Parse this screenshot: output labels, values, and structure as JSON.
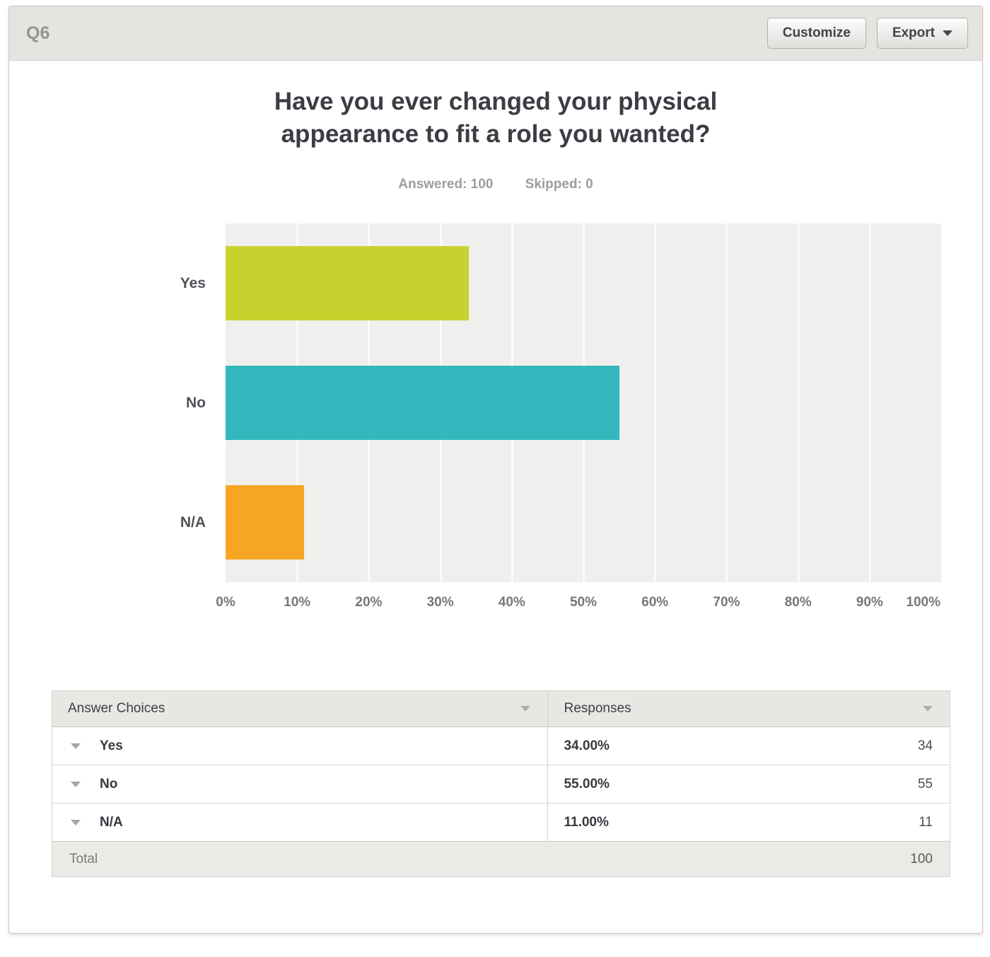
{
  "header": {
    "question_label": "Q6",
    "customize_label": "Customize",
    "export_label": "Export"
  },
  "chart_data": {
    "type": "bar",
    "orientation": "horizontal",
    "title": "Have you ever changed your physical appearance to fit a role you wanted?",
    "answered_label": "Answered: 100",
    "skipped_label": "Skipped: 0",
    "categories": [
      "Yes",
      "No",
      "N/A"
    ],
    "values": [
      34,
      55,
      11
    ],
    "bar_colors": [
      "#c8d22e",
      "#35b8bd",
      "#f6a623"
    ],
    "x_ticks": [
      "0%",
      "10%",
      "20%",
      "30%",
      "40%",
      "50%",
      "60%",
      "70%",
      "80%",
      "90%",
      "100%"
    ],
    "xlim": [
      0,
      100
    ],
    "grid": true,
    "plot_bg": "#efefed",
    "legend": "none"
  },
  "table": {
    "columns": {
      "choices": "Answer Choices",
      "responses": "Responses"
    },
    "rows": [
      {
        "choice": "Yes",
        "percent": "34.00%",
        "count": "34"
      },
      {
        "choice": "No",
        "percent": "55.00%",
        "count": "55"
      },
      {
        "choice": "N/A",
        "percent": "11.00%",
        "count": "11"
      }
    ],
    "total_label": "Total",
    "total_value": "100"
  }
}
